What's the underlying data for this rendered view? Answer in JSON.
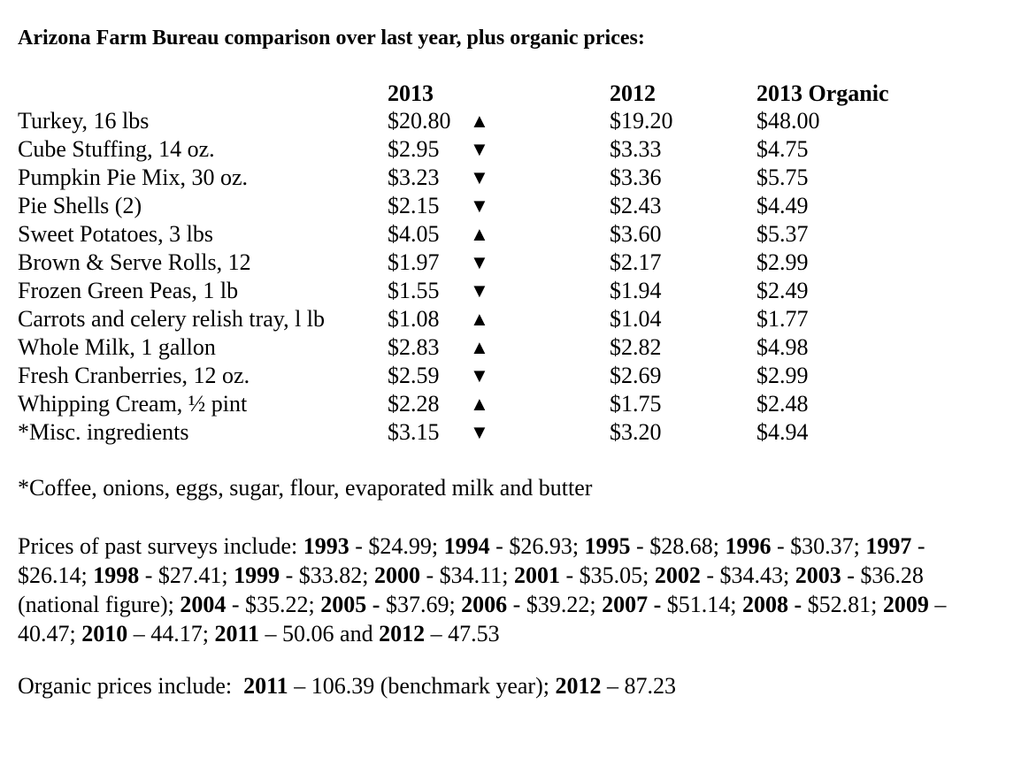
{
  "title": "Arizona Farm Bureau comparison over last year, plus organic prices:",
  "headers": {
    "col_2013": "2013",
    "col_2012": "2012",
    "col_organic": "2013 Organic"
  },
  "rows": [
    {
      "item": "Turkey, 16 lbs",
      "price_2013": "$20.80",
      "trend": "▲",
      "price_2012": "$19.20",
      "organic_2013": "$48.00"
    },
    {
      "item": "Cube Stuffing, 14 oz.",
      "price_2013": "$2.95",
      "trend": "▼",
      "price_2012": "$3.33",
      "organic_2013": "$4.75"
    },
    {
      "item": "Pumpkin Pie Mix, 30 oz.",
      "price_2013": "$3.23",
      "trend": "▼",
      "price_2012": "$3.36",
      "organic_2013": "$5.75"
    },
    {
      "item": "Pie Shells (2)",
      "price_2013": "$2.15",
      "trend": "▼",
      "price_2012": "$2.43",
      "organic_2013": "$4.49"
    },
    {
      "item": "Sweet Potatoes, 3 lbs",
      "price_2013": "$4.05",
      "trend": "▲",
      "price_2012": "$3.60",
      "organic_2013": "$5.37"
    },
    {
      "item": "Brown & Serve Rolls, 12",
      "price_2013": "$1.97",
      "trend": "▼",
      "price_2012": "$2.17",
      "organic_2013": "$2.99"
    },
    {
      "item": "Frozen Green Peas, 1 lb",
      "price_2013": "$1.55",
      "trend": "▼",
      "price_2012": "$1.94",
      "organic_2013": "$2.49"
    },
    {
      "item": "Carrots and celery relish tray, l lb",
      "price_2013": "$1.08",
      "trend": "▲",
      "price_2012": "$1.04",
      "organic_2013": "$1.77"
    },
    {
      "item": "Whole Milk, 1 gallon",
      "price_2013": "$2.83",
      "trend": "▲",
      "price_2012": "$2.82",
      "organic_2013": "$4.98"
    },
    {
      "item": "Fresh Cranberries, 12 oz.",
      "price_2013": "$2.59",
      "trend": "▼",
      "price_2012": "$2.69",
      "organic_2013": "$2.99"
    },
    {
      "item": "Whipping Cream, ½ pint",
      "price_2013": "$2.28",
      "trend": "▲",
      "price_2012": "$1.75",
      "organic_2013": "$2.48"
    },
    {
      "item": "*Misc. ingredients",
      "price_2013": "$3.15",
      "trend": "▼",
      "price_2012": "$3.20",
      "organic_2013": "$4.94"
    }
  ],
  "footnote": "*Coffee, onions, eggs, sugar, flour, evaporated milk and butter",
  "past_surveys": {
    "intro": "Prices of past surveys include: ",
    "entries": [
      {
        "year": "1993",
        "text": " - $24.99; "
      },
      {
        "year": "1994",
        "text": " - $26.93; "
      },
      {
        "year": "1995",
        "text": " - $28.68; "
      },
      {
        "year": "1996",
        "text": " - $30.37; "
      },
      {
        "year": "1997",
        "text": " - $26.14; "
      },
      {
        "year": "1998",
        "text": " - $27.41; "
      },
      {
        "year": "1999",
        "text": " - $33.82; "
      },
      {
        "year": "2000",
        "text": " - $34.11; "
      },
      {
        "year": "2001",
        "text": " - $35.05; "
      },
      {
        "year": "2002",
        "text": " - $34.43; "
      },
      {
        "year": "2003 -",
        "text": " $36.28 (national figure); "
      },
      {
        "year": "2004",
        "text": " - $35.22; "
      },
      {
        "year": "2005 -",
        "text": " $37.69; "
      },
      {
        "year": "2006",
        "text": " - $39.22; "
      },
      {
        "year": "2007 -",
        "text": " $51.14; "
      },
      {
        "year": "2008 -",
        "text": " $52.81; "
      },
      {
        "year": "2009",
        "text": " – 40.47; "
      },
      {
        "year": "2010",
        "text": " – 44.17; "
      },
      {
        "year": "2011",
        "text": " – 50.06 and "
      },
      {
        "year": "2012",
        "text": " – 47.53"
      }
    ]
  },
  "organic_prices": {
    "intro": "Organic prices include:  ",
    "entries": [
      {
        "year": "2011",
        "text": " – 106.39 (benchmark year); "
      },
      {
        "year": "2012",
        "text": " – 87.23"
      }
    ]
  }
}
